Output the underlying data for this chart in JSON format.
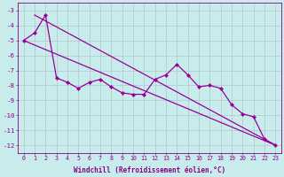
{
  "x_values": [
    0,
    1,
    2,
    3,
    4,
    5,
    6,
    7,
    8,
    9,
    10,
    11,
    12,
    13,
    14,
    15,
    16,
    17,
    18,
    19,
    20,
    21,
    22,
    23
  ],
  "zigzag_y": [
    -5.0,
    -4.5,
    -3.3,
    -7.5,
    -7.8,
    -8.2,
    -7.8,
    -7.6,
    -8.1,
    -8.5,
    -8.6,
    -8.6,
    -7.6,
    -7.3,
    -6.6,
    -7.3,
    -8.1,
    -8.0,
    -8.2,
    -9.3,
    -9.9,
    -10.1,
    -11.6,
    -12.0
  ],
  "trend1_x": [
    0,
    23
  ],
  "trend1_y": [
    -5.0,
    -12.0
  ],
  "trend2_x": [
    1,
    23
  ],
  "trend2_y": [
    -3.3,
    -12.0
  ],
  "color": "#990099",
  "bg_color": "#c8ecec",
  "grid_color": "#b0c8c8",
  "ylim": [
    -12.5,
    -2.5
  ],
  "xlim": [
    -0.5,
    23.5
  ],
  "yticks": [
    -3,
    -4,
    -5,
    -6,
    -7,
    -8,
    -9,
    -10,
    -11,
    -12
  ],
  "xticks": [
    0,
    1,
    2,
    3,
    4,
    5,
    6,
    7,
    8,
    9,
    10,
    11,
    12,
    13,
    14,
    15,
    16,
    17,
    18,
    19,
    20,
    21,
    22,
    23
  ],
  "xlabel": "Windchill (Refroidissement éolien,°C)",
  "font_color": "#880088",
  "tick_fontsize": 4.8,
  "label_fontsize": 5.5
}
